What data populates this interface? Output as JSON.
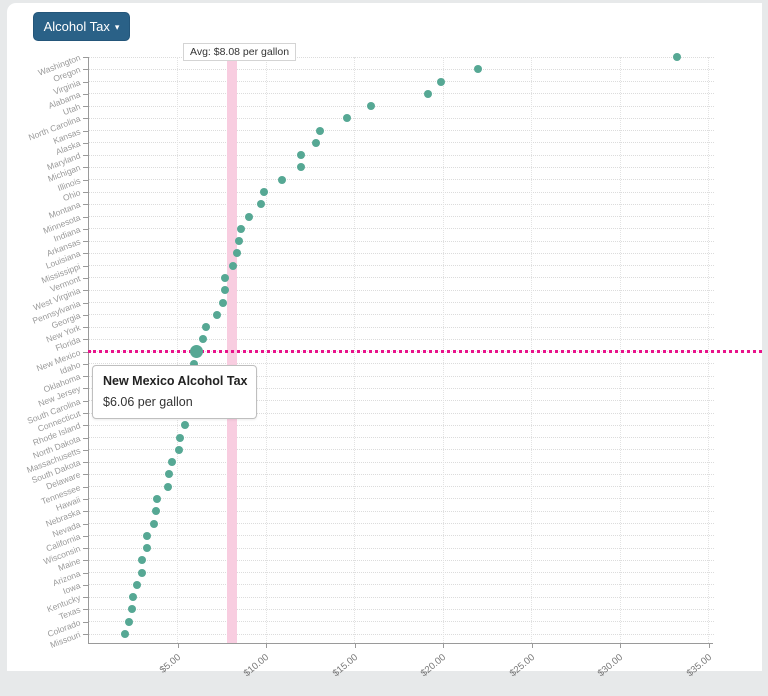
{
  "toolbar": {
    "dropdown_label": "Alcohol Tax",
    "dropdown_caret_icon": "▾"
  },
  "avg_line": {
    "label": "Avg: $8.08 per gallon",
    "value": 8.08
  },
  "tooltip": {
    "title": "New Mexico Alcohol Tax",
    "value_text": "$6.06 per gallon"
  },
  "colors": {
    "dot": "#56a894",
    "avg_band": "#f8cde0",
    "highlight_line": "#e8138b",
    "button_bg": "#2a6187",
    "axis": "#9a9a9a",
    "grid": "#dcdcdc"
  },
  "chart_data": {
    "type": "scatter",
    "subtype": "horizontal-dot-plot",
    "title": "",
    "xlabel": "",
    "ylabel": "",
    "x_ticks": [
      "$5.00",
      "$10.00",
      "$15.00",
      "$20.00",
      "$25.00",
      "$30.00",
      "$35.00"
    ],
    "x_tick_values": [
      5,
      10,
      15,
      20,
      25,
      30,
      35
    ],
    "xlim": [
      0,
      38
    ],
    "grid": "dotted horizontal per state, dotted vertical per $5",
    "average": {
      "value": 8.08,
      "label": "Avg: $8.08 per gallon"
    },
    "highlighted_point": {
      "state": "New Mexico",
      "value": 6.06
    },
    "unit": "$ per gallon",
    "points": [
      {
        "state": "Washington",
        "value": 33.22
      },
      {
        "state": "Oregon",
        "value": 21.95
      },
      {
        "state": "Virginia",
        "value": 19.89
      },
      {
        "state": "Alabama",
        "value": 19.15
      },
      {
        "state": "Utah",
        "value": 15.92
      },
      {
        "state": "North Carolina",
        "value": 14.58
      },
      {
        "state": "Kansas",
        "value": 13.03
      },
      {
        "state": "Alaska",
        "value": 12.8
      },
      {
        "state": "Maryland",
        "value": 11.96
      },
      {
        "state": "Michigan",
        "value": 11.95
      },
      {
        "state": "Illinois",
        "value": 10.93
      },
      {
        "state": "Ohio",
        "value": 9.87
      },
      {
        "state": "Montana",
        "value": 9.74
      },
      {
        "state": "Minnesota",
        "value": 9.04
      },
      {
        "state": "Indiana",
        "value": 8.57
      },
      {
        "state": "Arkansas",
        "value": 8.46
      },
      {
        "state": "Louisiana",
        "value": 8.36
      },
      {
        "state": "Mississippi",
        "value": 8.11
      },
      {
        "state": "Vermont",
        "value": 7.71
      },
      {
        "state": "West Virginia",
        "value": 7.67
      },
      {
        "state": "Pennsylvania",
        "value": 7.59
      },
      {
        "state": "Georgia",
        "value": 7.25
      },
      {
        "state": "New York",
        "value": 6.63
      },
      {
        "state": "Florida",
        "value": 6.44
      },
      {
        "state": "New Mexico",
        "value": 6.06
      },
      {
        "state": "Idaho",
        "value": 5.96
      },
      {
        "state": "Oklahoma",
        "value": 5.76
      },
      {
        "state": "New Jersey",
        "value": 5.62
      },
      {
        "state": "South Carolina",
        "value": 5.5
      },
      {
        "state": "Connecticut",
        "value": 5.42
      },
      {
        "state": "Rhode Island",
        "value": 5.4
      },
      {
        "state": "North Dakota",
        "value": 5.16
      },
      {
        "state": "Massachusetts",
        "value": 5.07
      },
      {
        "state": "South Dakota",
        "value": 4.71
      },
      {
        "state": "Delaware",
        "value": 4.5
      },
      {
        "state": "Tennessee",
        "value": 4.46
      },
      {
        "state": "Hawaii",
        "value": 3.86
      },
      {
        "state": "Nebraska",
        "value": 3.79
      },
      {
        "state": "Nevada",
        "value": 3.66
      },
      {
        "state": "California",
        "value": 3.29
      },
      {
        "state": "Wisconsin",
        "value": 3.26
      },
      {
        "state": "Maine",
        "value": 3.01
      },
      {
        "state": "Arizona",
        "value": 2.98
      },
      {
        "state": "Iowa",
        "value": 2.71
      },
      {
        "state": "Kentucky",
        "value": 2.5
      },
      {
        "state": "Texas",
        "value": 2.41
      },
      {
        "state": "Colorado",
        "value": 2.28
      },
      {
        "state": "Missouri",
        "value": 2.03
      }
    ]
  }
}
